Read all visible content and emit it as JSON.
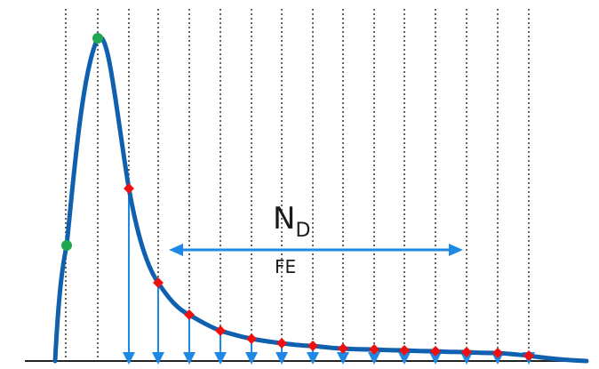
{
  "labels": {
    "main_symbol": "N",
    "main_subscript": "D",
    "secondary": "FE"
  },
  "colors": {
    "curve": "#1060b0",
    "arrow": "#1e88e5",
    "peak_points": "#1fa84f",
    "sample_points": "#ee1111",
    "grid": "#222222",
    "axis": "#222222"
  },
  "icons": {
    "down_arrow": "arrow-down-icon",
    "double_arrow": "double-headed-arrow-icon"
  }
}
